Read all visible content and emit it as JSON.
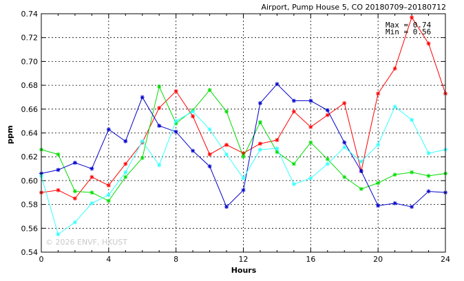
{
  "chart_data": {
    "type": "line",
    "title": "Airport, Pump House 5, CO 20180709–20180712",
    "xlabel": "Hours",
    "ylabel": "ppm",
    "xlim": [
      0,
      24
    ],
    "ylim": [
      0.54,
      0.74
    ],
    "x_ticks": [
      0,
      4,
      8,
      12,
      16,
      20,
      24
    ],
    "y_ticks": [
      0.54,
      0.56,
      0.58,
      0.6,
      0.62,
      0.64,
      0.66,
      0.68,
      0.7,
      0.72,
      0.74
    ],
    "grid": true,
    "annotations": {
      "max": "Max = 0.74",
      "min": "Min = 0.56",
      "watermark": "© 2026  ENVF, HKUST"
    },
    "x": [
      0,
      1,
      2,
      3,
      4,
      5,
      6,
      7,
      8,
      9,
      10,
      11,
      12,
      13,
      14,
      15,
      16,
      17,
      18,
      19,
      20,
      21,
      22,
      23,
      24
    ],
    "series": [
      {
        "color": "#ff0000",
        "values": [
          0.59,
          0.592,
          0.585,
          0.603,
          0.596,
          0.614,
          0.632,
          0.661,
          0.675,
          0.654,
          0.622,
          0.63,
          0.623,
          0.631,
          0.634,
          0.658,
          0.645,
          0.655,
          0.665,
          0.608,
          0.673,
          0.694,
          0.737,
          0.715,
          0.673
        ]
      },
      {
        "color": "#00dd00",
        "values": [
          0.626,
          0.622,
          0.591,
          0.59,
          0.583,
          0.603,
          0.619,
          0.679,
          0.648,
          0.659,
          0.676,
          0.658,
          0.62,
          0.649,
          0.624,
          0.614,
          0.632,
          0.618,
          0.603,
          0.593,
          0.598,
          0.605,
          0.607,
          0.604,
          0.606
        ]
      },
      {
        "color": "#0000cc",
        "values": [
          0.606,
          0.609,
          0.615,
          0.61,
          0.643,
          0.633,
          0.67,
          0.646,
          0.641,
          0.625,
          0.612,
          0.578,
          0.592,
          0.665,
          0.681,
          0.667,
          0.667,
          0.659,
          0.632,
          0.608,
          0.579,
          0.581,
          0.578,
          0.591,
          0.59
        ]
      },
      {
        "color": "#33ffff",
        "values": [
          0.604,
          0.555,
          0.565,
          0.581,
          0.588,
          0.607,
          0.633,
          0.613,
          0.65,
          0.658,
          0.643,
          0.622,
          0.602,
          0.626,
          0.627,
          0.597,
          0.602,
          0.614,
          0.628,
          0.616,
          0.63,
          0.662,
          0.651,
          0.623,
          0.626
        ]
      }
    ]
  }
}
